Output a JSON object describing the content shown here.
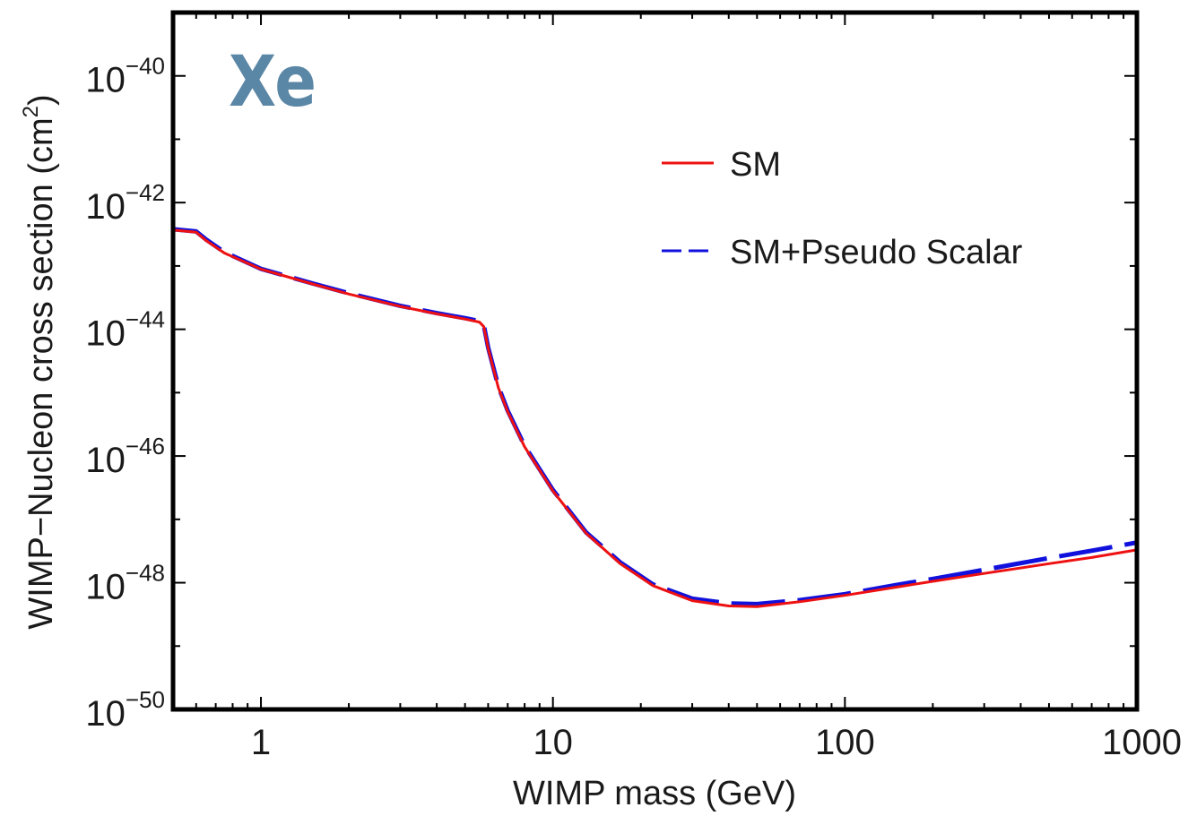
{
  "chart_data": {
    "type": "line",
    "badge": "Xe",
    "xlabel": "WIMP mass  (GeV)",
    "ylabel": "WIMP−Nucleon cross section  (cm",
    "ylabel_sup": "2",
    "ylabel_close": ")",
    "xscale": "log",
    "yscale": "log",
    "xlim": [
      0.5,
      1000
    ],
    "ylim": [
      1e-50,
      1e-39
    ],
    "grid": false,
    "legend_position": "top-right",
    "x_ticks": [
      {
        "value": 1,
        "label": "1"
      },
      {
        "value": 10,
        "label": "10"
      },
      {
        "value": 100,
        "label": "100"
      },
      {
        "value": 1000,
        "label": "1000"
      }
    ],
    "y_ticks": [
      {
        "value": -50,
        "base": "10",
        "exp": "−50"
      },
      {
        "value": -48,
        "base": "10",
        "exp": "−48"
      },
      {
        "value": -46,
        "base": "10",
        "exp": "−46"
      },
      {
        "value": -44,
        "base": "10",
        "exp": "−44"
      },
      {
        "value": -42,
        "base": "10",
        "exp": "−42"
      },
      {
        "value": -40,
        "base": "10",
        "exp": "−40"
      }
    ],
    "x": [
      0.5,
      0.6,
      0.65,
      0.75,
      1.0,
      1.5,
      2.0,
      3.0,
      4.0,
      5.0,
      5.6,
      5.8,
      6.0,
      6.5,
      7.0,
      8.0,
      10.0,
      13.0,
      17.0,
      22.0,
      30.0,
      40.0,
      50.0,
      70.0,
      100.0,
      150.0,
      200.0,
      300.0,
      500.0,
      700.0,
      1000.0
    ],
    "series": [
      {
        "name": "SM",
        "color": "#ee1111",
        "style": "solid",
        "values": [
          3.7e-43,
          3.4e-43,
          2.5e-43,
          1.6e-43,
          8.9e-44,
          5.2e-44,
          3.6e-44,
          2.3e-44,
          1.75e-44,
          1.45e-44,
          1.3e-44,
          1.1e-44,
          5e-45,
          1.2e-45,
          5e-46,
          1.4e-46,
          2.8e-47,
          6e-48,
          2e-48,
          9e-49,
          5.2e-49,
          4.3e-49,
          4.2e-49,
          5e-49,
          6.3e-49,
          8.5e-49,
          1.05e-48,
          1.4e-48,
          2e-48,
          2.5e-48,
          3.3e-48
        ]
      },
      {
        "name": "SM+Pseudo Scalar",
        "color": "#1111dd",
        "style": "dashed",
        "values": [
          3.8e-43,
          3.5e-43,
          2.6e-43,
          1.65e-43,
          9e-44,
          5.3e-44,
          3.7e-44,
          2.35e-44,
          1.8e-44,
          1.5e-44,
          1.35e-44,
          1.15e-44,
          5.2e-45,
          1.25e-45,
          5.2e-46,
          1.45e-46,
          2.9e-47,
          6.2e-48,
          2.1e-48,
          9.4e-49,
          5.6e-49,
          4.7e-49,
          4.6e-49,
          5.3e-49,
          6.6e-49,
          9.2e-49,
          1.15e-48,
          1.6e-48,
          2.45e-48,
          3.2e-48,
          4.3e-48
        ]
      }
    ]
  }
}
